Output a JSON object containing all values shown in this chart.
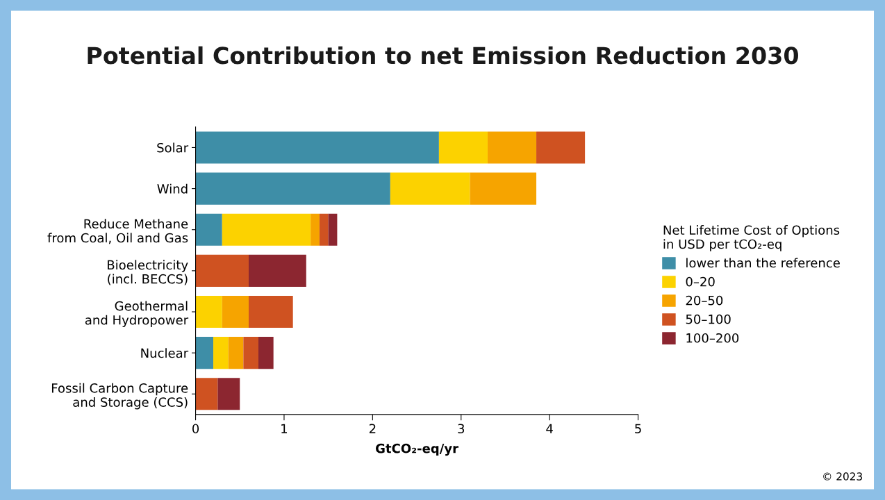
{
  "chart_data": {
    "type": "bar",
    "orientation": "horizontal",
    "stacked": true,
    "title": "Potential Contribution to net Emission Reduction 2030",
    "xlabel": "GtCO₂-eq/yr",
    "legend_title": "Net Lifetime Cost of Options\nin USD per tCO₂-eq",
    "categories": [
      "Solar",
      "Wind",
      "Reduce Methane\nfrom Coal, Oil and Gas",
      "Bioelectricity\n(incl. BECCS)",
      "Geothermal\nand Hydropower",
      "Nuclear",
      "Fossil Carbon Capture\nand Storage (CCS)"
    ],
    "series": [
      {
        "name": "lower than the reference",
        "color": "#3e8ea7",
        "values": [
          2.75,
          2.2,
          0.3,
          null,
          null,
          0.2,
          null
        ]
      },
      {
        "name": "0–20",
        "color": "#fcd200",
        "values": [
          0.55,
          0.9,
          1.0,
          null,
          0.3,
          0.17,
          null
        ]
      },
      {
        "name": "20–50",
        "color": "#f6a400",
        "values": [
          0.55,
          0.75,
          0.1,
          null,
          0.3,
          0.17,
          null
        ]
      },
      {
        "name": "50–100",
        "color": "#cf5221",
        "values": [
          0.55,
          null,
          0.1,
          0.6,
          0.5,
          0.17,
          0.25
        ]
      },
      {
        "name": "100–200",
        "color": "#8c2630",
        "values": [
          null,
          null,
          0.1,
          0.65,
          null,
          0.17,
          0.25
        ]
      }
    ],
    "xlim": [
      0,
      5
    ],
    "xticks": [
      0,
      1,
      2,
      3,
      4,
      5
    ],
    "grid": false,
    "legend": "right",
    "annotations": [
      "© 2023"
    ]
  }
}
